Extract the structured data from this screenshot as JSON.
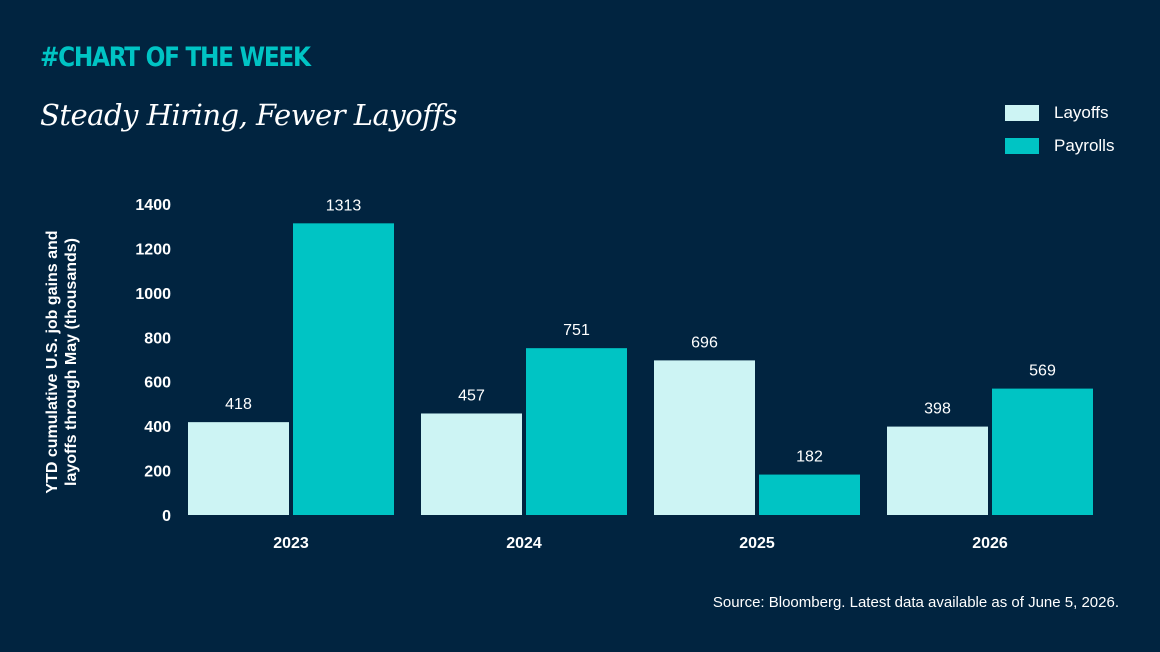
{
  "header": {
    "tag": "#CHART OF THE WEEK",
    "title": "Steady Hiring, Fewer Layoffs"
  },
  "footer": {
    "source": "Source: Bloomberg. Latest data available as of June 5, 2026."
  },
  "colors": {
    "background": "#012440",
    "layoffs": "#cdf4f4",
    "payrolls": "#00c4c4",
    "tag": "#00c4c4",
    "text": "#ffffff"
  },
  "chart_data": {
    "type": "bar",
    "categories": [
      "2023",
      "2024",
      "2025",
      "2026"
    ],
    "series": [
      {
        "name": "Layoffs",
        "values": [
          418,
          457,
          696,
          398
        ]
      },
      {
        "name": "Payrolls",
        "values": [
          1313,
          751,
          182,
          569
        ]
      }
    ],
    "ylabel_lines": [
      "YTD cumulative U.S. job gains and",
      "layoffs through May (thousands)"
    ],
    "yticks": [
      "0",
      "200",
      "400",
      "600",
      "800",
      "1000",
      "1200",
      "1400"
    ],
    "ylim": [
      0,
      1400
    ],
    "grid": false,
    "legend": "top-right"
  }
}
